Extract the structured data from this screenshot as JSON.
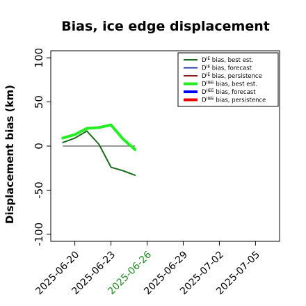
{
  "chart_data": {
    "type": "line",
    "title": "Bias, ice edge displacement",
    "ylabel": "Displacement bias (km)",
    "xlabel": "",
    "ylim": [
      -108,
      108
    ],
    "xlim": [
      "2025-06-18",
      "2025-07-07"
    ],
    "yticks": [
      -100,
      -50,
      0,
      50,
      100
    ],
    "xticks": [
      {
        "value": "2025-06-20",
        "label": "2025-06-20",
        "color": "#000000"
      },
      {
        "value": "2025-06-23",
        "label": "2025-06-23",
        "color": "#000000"
      },
      {
        "value": "2025-06-26",
        "label": "2025-06-26",
        "color": "#228b22"
      },
      {
        "value": "2025-06-29",
        "label": "2025-06-29",
        "color": "#000000"
      },
      {
        "value": "2025-07-02",
        "label": "2025-07-02",
        "color": "#000000"
      },
      {
        "value": "2025-07-05",
        "label": "2025-07-05",
        "color": "#000000"
      }
    ],
    "zero_line": {
      "y": 0,
      "x_range": [
        "2025-06-19",
        "2025-06-25"
      ]
    },
    "legend_position": "top-right",
    "grid": false,
    "series": [
      {
        "name": "D^IE bias, best est.",
        "legend_main": "D",
        "legend_sup": "IE",
        "legend_rest": " bias, best est.",
        "color": "#1a6b1a",
        "width": 2,
        "plotted": true,
        "x": [
          "2025-06-19",
          "2025-06-20",
          "2025-06-21",
          "2025-06-22",
          "2025-06-23",
          "2025-06-24",
          "2025-06-25"
        ],
        "y": [
          4,
          9,
          17,
          2,
          -24,
          -28,
          -33
        ]
      },
      {
        "name": "D^IE bias, forecast",
        "legend_main": "D",
        "legend_sup": "IE",
        "legend_rest": " bias, forecast",
        "color": "#1f3aa6",
        "width": 2,
        "plotted": false,
        "x": [],
        "y": []
      },
      {
        "name": "D^IE bias, persistence",
        "legend_main": "D",
        "legend_sup": "IE",
        "legend_rest": " bias, persistence",
        "color": "#8b1a1a",
        "width": 2,
        "plotted": false,
        "x": [],
        "y": []
      },
      {
        "name": "D^IIEE bias, best est.",
        "legend_main": "D",
        "legend_sup": "IIEE",
        "legend_rest": " bias, best est.",
        "color": "#22ee22",
        "width": 4,
        "plotted": true,
        "x": [
          "2025-06-19",
          "2025-06-20",
          "2025-06-21",
          "2025-06-22",
          "2025-06-23",
          "2025-06-24",
          "2025-06-25"
        ],
        "y": [
          9,
          13,
          20,
          21,
          24,
          8,
          -4
        ]
      },
      {
        "name": "D^IIEE bias, forecast",
        "legend_main": "D",
        "legend_sup": "IIEE",
        "legend_rest": " bias, forecast",
        "color": "#0000ee",
        "width": 4,
        "plotted": false,
        "x": [],
        "y": []
      },
      {
        "name": "D^IIEE bias, persistence",
        "legend_main": "D",
        "legend_sup": "IIEE",
        "legend_rest": " bias, persistence",
        "color": "#ee0000",
        "width": 4,
        "plotted": false,
        "x": [],
        "y": []
      }
    ]
  }
}
